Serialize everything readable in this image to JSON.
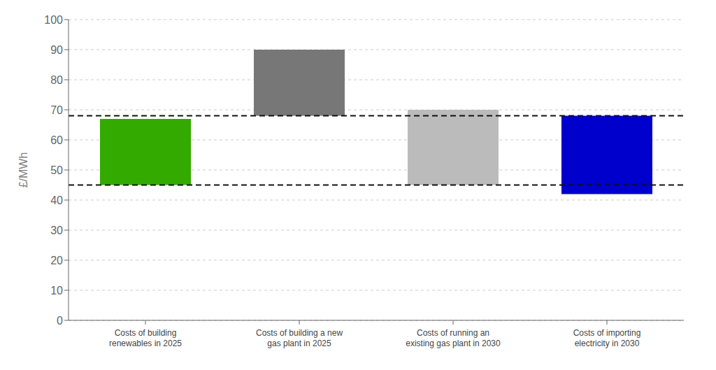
{
  "chart_data": {
    "type": "bar",
    "categories": [
      "Costs of building\nrenewables in 2025",
      "Costs of building a new\ngas plant in 2025",
      "Costs of running an\nexisting gas plant in 2030",
      "Costs of importing\nelectricity in 2030"
    ],
    "values": [
      [
        45,
        67
      ],
      [
        68,
        90
      ],
      [
        45,
        70
      ],
      [
        42,
        68
      ]
    ],
    "colors": [
      "#33aa00",
      "#777777",
      "#bbbbbb",
      "#0000cc"
    ],
    "reference_lines": {
      "values": [
        45,
        68
      ],
      "color": "#111111",
      "line_style": "dashed"
    },
    "ylabel": "£/MWh",
    "ylim": [
      0,
      100
    ],
    "yticks": [
      0,
      10,
      20,
      30,
      40,
      50,
      60,
      70,
      80,
      90,
      100
    ],
    "grid": true
  }
}
